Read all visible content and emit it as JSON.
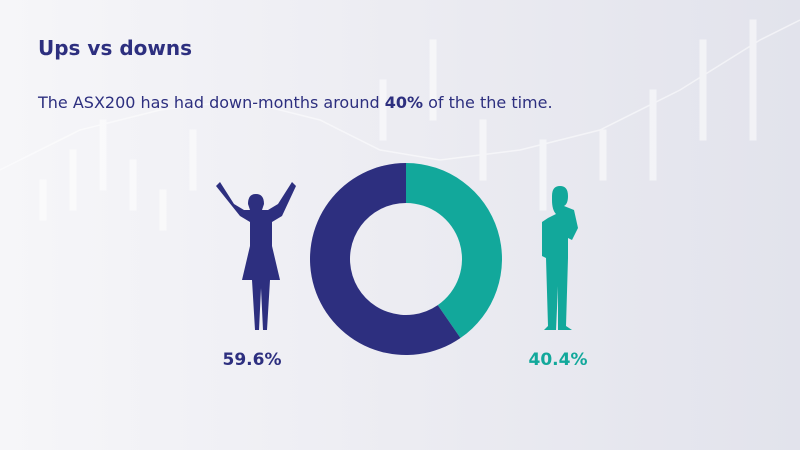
{
  "chart_data": {
    "type": "donut",
    "title": "Ups vs downs",
    "subtitle": [
      "The ASX200 has had down-months around ",
      "40%",
      " of the the time."
    ],
    "values": [
      59.6,
      40.4
    ],
    "value_labels": [
      "59.6%",
      "40.4%"
    ],
    "colors": [
      "#2d2f7f",
      "#12a89b"
    ]
  }
}
